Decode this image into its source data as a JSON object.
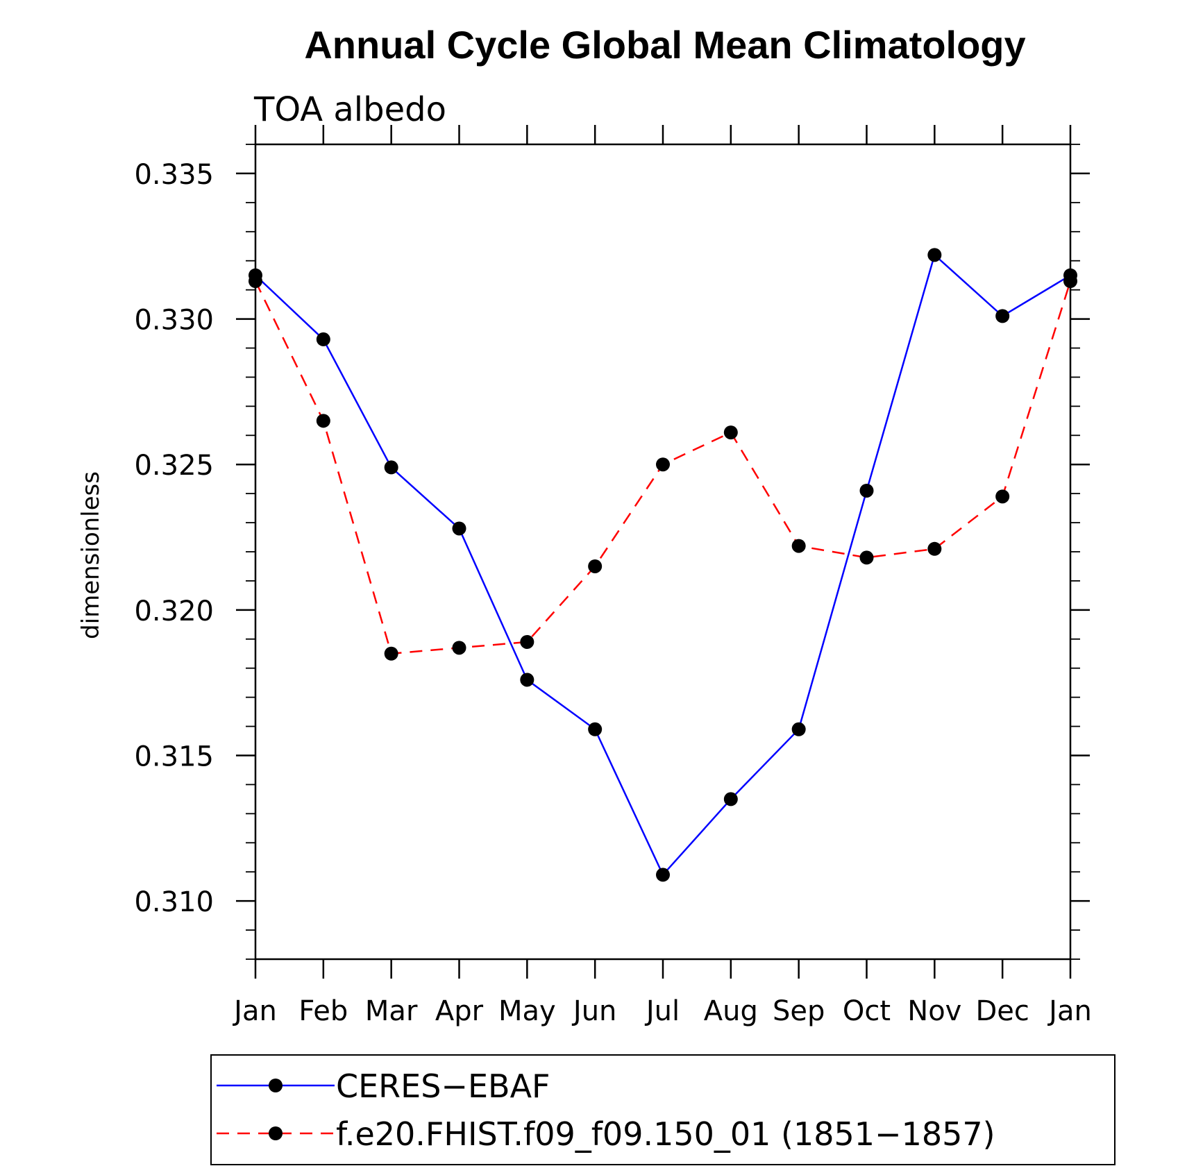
{
  "chart_data": {
    "type": "line",
    "title": "Annual Cycle Global Mean Climatology",
    "subtitle": "TOA albedo",
    "xlabel": "",
    "ylabel": "dimensionless",
    "categories": [
      "Jan",
      "Feb",
      "Mar",
      "Apr",
      "May",
      "Jun",
      "Jul",
      "Aug",
      "Sep",
      "Oct",
      "Nov",
      "Dec",
      "Jan"
    ],
    "ylim": [
      0.308,
      0.336
    ],
    "yticks": [
      0.31,
      0.315,
      0.32,
      0.325,
      0.33,
      0.335
    ],
    "ytick_labels": [
      "0.310",
      "0.315",
      "0.320",
      "0.325",
      "0.330",
      "0.335"
    ],
    "grid": false,
    "legend_position": "bottom",
    "series": [
      {
        "name": "CERES−EBAF",
        "color": "#0000ff",
        "style": "solid",
        "marker": "circle",
        "values": [
          0.3315,
          0.3293,
          0.3249,
          0.3228,
          0.3176,
          0.3159,
          0.3109,
          0.3135,
          0.3159,
          0.3241,
          0.3322,
          0.3301,
          0.3315
        ]
      },
      {
        "name": "f.e20.FHIST.f09_f09.150_01 (1851−1857)",
        "color": "#ff0000",
        "style": "dashed",
        "marker": "circle",
        "values": [
          0.3313,
          0.3265,
          0.3185,
          0.3187,
          0.3189,
          0.3215,
          0.325,
          0.3261,
          0.3222,
          0.3218,
          0.3221,
          0.3239,
          0.3313
        ]
      }
    ]
  }
}
